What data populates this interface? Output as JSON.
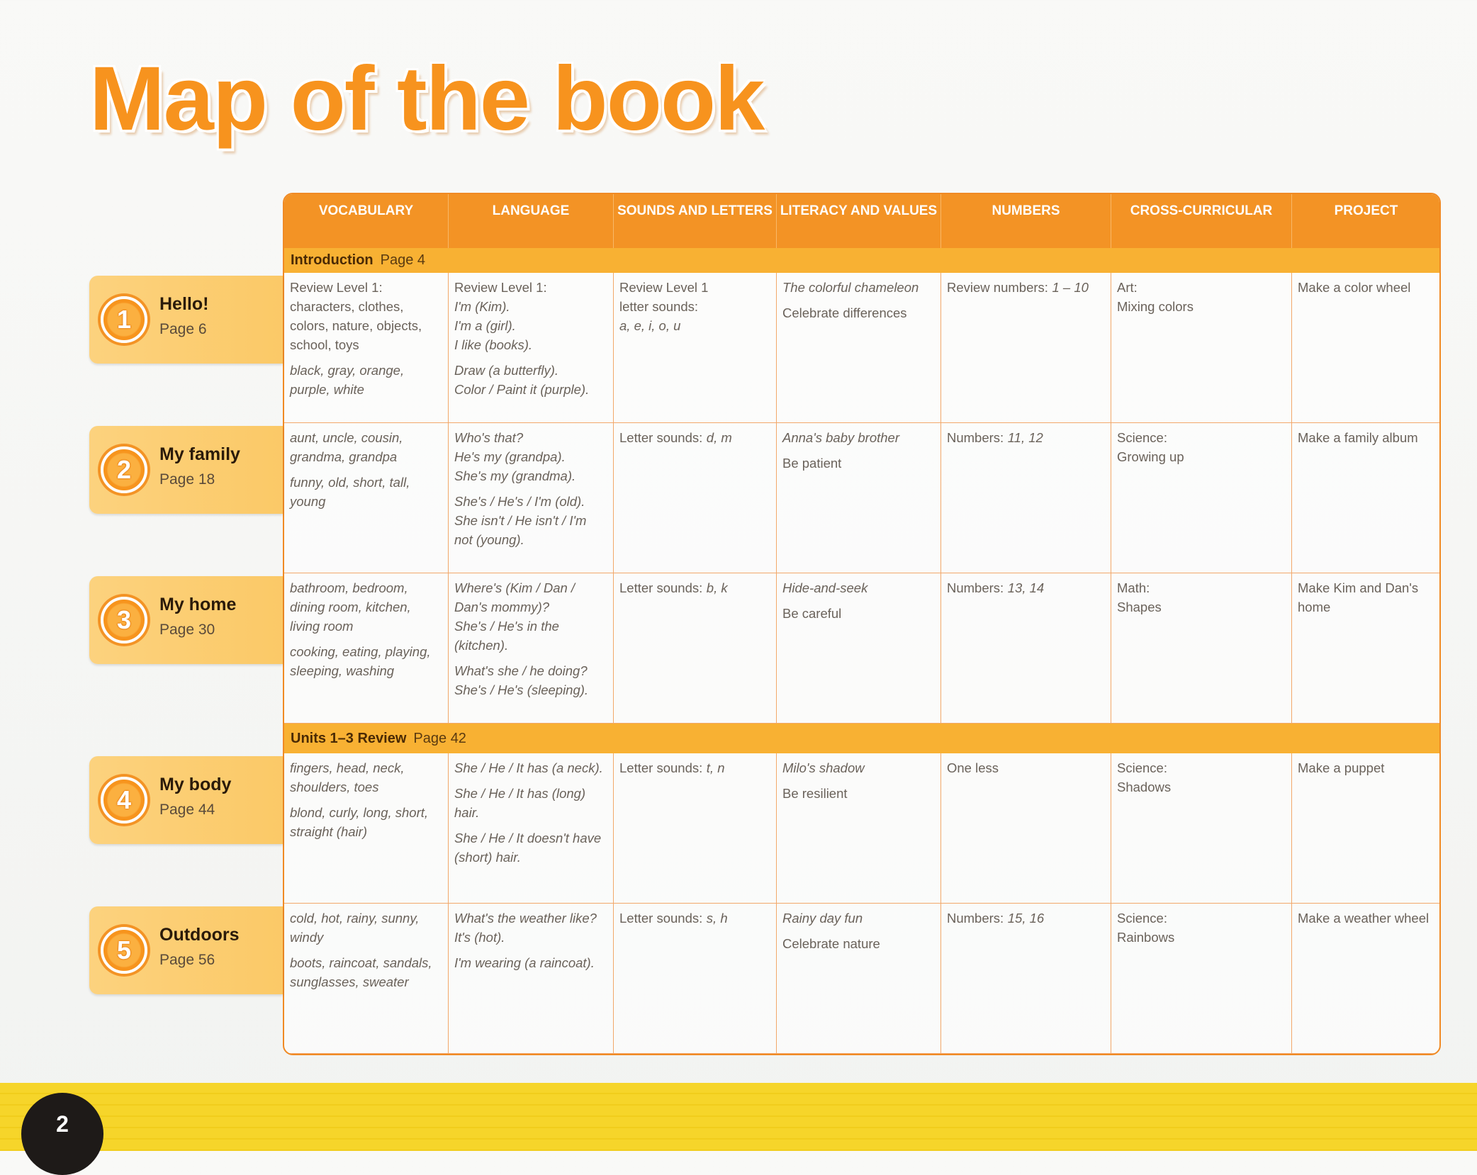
{
  "title": "Map of the book",
  "columns": [
    "VOCABULARY",
    "LANGUAGE",
    "SOUNDS AND LETTERS",
    "LITERACY AND VALUES",
    "NUMBERS",
    "CROSS-CURRICULAR",
    "PROJECT"
  ],
  "rows": [
    {
      "title": "Introduction",
      "page": "Page 4"
    },
    {
      "number": "1",
      "title": "Hello!",
      "page": "Page 6",
      "cells": [
        [
          [
            "Review Level 1:",
            "characters, clothes, colors, nature, objects, school, toys"
          ],
          [
            {
              "text": "black, gray, orange, purple, white",
              "italic": true
            }
          ]
        ],
        [
          [
            "Review Level 1:",
            {
              "text": "I'm (Kim).",
              "italic": true
            },
            {
              "text": "I'm a (girl).",
              "italic": true
            },
            {
              "text": "I like (books).",
              "italic": true
            }
          ],
          [
            {
              "text": "Draw (a butterfly).",
              "italic": true
            },
            {
              "text": "Color / Paint it (purple).",
              "italic": true
            }
          ]
        ],
        [
          [
            "Review Level 1",
            "letter sounds:",
            {
              "text": "a, e, i, o, u",
              "italic": true
            }
          ]
        ],
        [
          [
            {
              "text": "The colorful chameleon",
              "italic": true
            }
          ],
          [
            "Celebrate differences"
          ]
        ],
        [
          [
            [
              "Review numbers:",
              {
                "text": "1 – 10",
                "italic": true
              }
            ]
          ]
        ],
        [
          [
            "Art:",
            "Mixing colors"
          ]
        ],
        [
          [
            "Make a color wheel"
          ]
        ]
      ]
    },
    {
      "number": "2",
      "title": "My family",
      "page": "Page 18",
      "cells": [
        [
          [
            {
              "text": "aunt, uncle, cousin, grandma, grandpa",
              "italic": true
            }
          ],
          [
            {
              "text": "funny, old, short, tall, young",
              "italic": true
            }
          ]
        ],
        [
          [
            {
              "text": "Who's that?",
              "italic": true
            },
            {
              "text": "He's my (grandpa).",
              "italic": true
            },
            {
              "text": "She's my (grandma).",
              "italic": true
            }
          ],
          [
            {
              "text": "She's / He's / I'm (old).",
              "italic": true
            },
            {
              "text": "She isn't / He isn't / I'm not (young).",
              "italic": true
            }
          ]
        ],
        [
          [
            [
              "Letter sounds:",
              {
                "text": "d, m",
                "italic": true
              }
            ]
          ]
        ],
        [
          [
            {
              "text": "Anna's baby brother",
              "italic": true
            }
          ],
          [
            "Be patient"
          ]
        ],
        [
          [
            [
              "Numbers:",
              {
                "text": "11, 12",
                "italic": true
              }
            ]
          ]
        ],
        [
          [
            "Science:",
            "Growing up"
          ]
        ],
        [
          [
            "Make a family album"
          ]
        ]
      ]
    },
    {
      "number": "3",
      "title": "My home",
      "page": "Page 30",
      "cells": [
        [
          [
            {
              "text": "bathroom, bedroom, dining room, kitchen, living room",
              "italic": true
            }
          ],
          [
            {
              "text": "cooking, eating, playing, sleeping, washing",
              "italic": true
            }
          ]
        ],
        [
          [
            {
              "text": "Where's (Kim / Dan / Dan's mommy)?",
              "italic": true
            },
            {
              "text": "She's / He's in the (kitchen).",
              "italic": true
            }
          ],
          [
            {
              "text": "What's she / he doing?",
              "italic": true
            },
            {
              "text": "She's / He's (sleeping).",
              "italic": true
            }
          ]
        ],
        [
          [
            [
              "Letter sounds:",
              {
                "text": "b, k",
                "italic": true
              }
            ]
          ]
        ],
        [
          [
            {
              "text": "Hide-and-seek",
              "italic": true
            }
          ],
          [
            "Be careful"
          ]
        ],
        [
          [
            [
              "Numbers:",
              {
                "text": "13, 14",
                "italic": true
              }
            ]
          ]
        ],
        [
          [
            "Math:",
            "Shapes"
          ]
        ],
        [
          [
            "Make Kim and Dan's home"
          ]
        ]
      ]
    },
    {
      "title": "Units 1–3 Review",
      "page": "Page 42"
    },
    {
      "number": "4",
      "title": "My body",
      "page": "Page 44",
      "cells": [
        [
          [
            {
              "text": "fingers, head, neck, shoulders, toes",
              "italic": true
            }
          ],
          [
            {
              "text": "blond, curly, long, short, straight (hair)",
              "italic": true
            }
          ]
        ],
        [
          [
            {
              "text": "She / He / It has (a neck).",
              "italic": true
            }
          ],
          [
            {
              "text": "She / He / It has (long) hair.",
              "italic": true
            }
          ],
          [
            {
              "text": "She / He / It doesn't have (short) hair.",
              "italic": true
            }
          ]
        ],
        [
          [
            [
              "Letter sounds:",
              {
                "text": "t, n",
                "italic": true
              }
            ]
          ]
        ],
        [
          [
            {
              "text": "Milo's shadow",
              "italic": true
            }
          ],
          [
            "Be resilient"
          ]
        ],
        [
          [
            "One less"
          ]
        ],
        [
          [
            "Science:",
            "Shadows"
          ]
        ],
        [
          [
            "Make a puppet"
          ]
        ]
      ]
    },
    {
      "number": "5",
      "title": "Outdoors",
      "page": "Page 56",
      "cells": [
        [
          [
            {
              "text": "cold, hot, rainy, sunny, windy",
              "italic": true
            }
          ],
          [
            {
              "text": "boots, raincoat, sandals, sunglasses, sweater",
              "italic": true
            }
          ]
        ],
        [
          [
            {
              "text": "What's the weather like?",
              "italic": true
            },
            {
              "text": "It's (hot).",
              "italic": true
            }
          ],
          [
            {
              "text": "I'm wearing (a raincoat).",
              "italic": true
            }
          ]
        ],
        [
          [
            [
              "Letter sounds:",
              {
                "text": "s, h",
                "italic": true
              }
            ]
          ]
        ],
        [
          [
            {
              "text": "Rainy day fun",
              "italic": true
            }
          ],
          [
            "Celebrate nature"
          ]
        ],
        [
          [
            [
              "Numbers:",
              {
                "text": "15, 16",
                "italic": true
              }
            ]
          ]
        ],
        [
          [
            "Science:",
            "Rainbows"
          ]
        ],
        [
          [
            "Make a weather wheel"
          ]
        ]
      ]
    }
  ],
  "page_number": "2"
}
